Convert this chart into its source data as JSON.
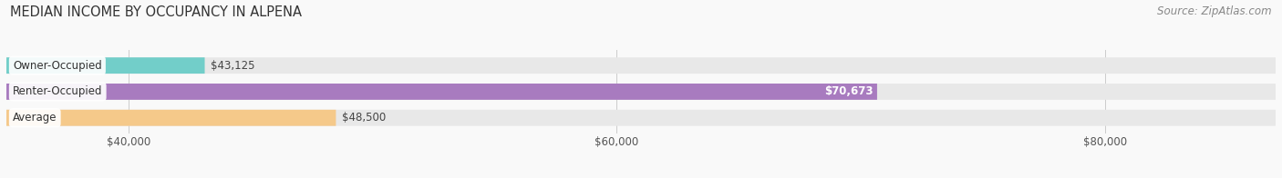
{
  "title": "MEDIAN INCOME BY OCCUPANCY IN ALPENA",
  "source": "Source: ZipAtlas.com",
  "categories": [
    "Owner-Occupied",
    "Renter-Occupied",
    "Average"
  ],
  "values": [
    43125,
    70673,
    48500
  ],
  "labels": [
    "$43,125",
    "$70,673",
    "$48,500"
  ],
  "bar_colors": [
    "#72cec9",
    "#a87bbf",
    "#f5c98a"
  ],
  "bar_bg_color": "#e8e8e8",
  "bar_label_color_inside": [
    false,
    true,
    false
  ],
  "xlim": [
    35000,
    87000
  ],
  "xticks": [
    40000,
    60000,
    80000
  ],
  "xtick_labels": [
    "$40,000",
    "$60,000",
    "$80,000"
  ],
  "title_fontsize": 10.5,
  "source_fontsize": 8.5,
  "label_fontsize": 8.5,
  "cat_fontsize": 8.5,
  "tick_fontsize": 8.5,
  "bar_height": 0.62,
  "background_color": "#f9f9f9"
}
